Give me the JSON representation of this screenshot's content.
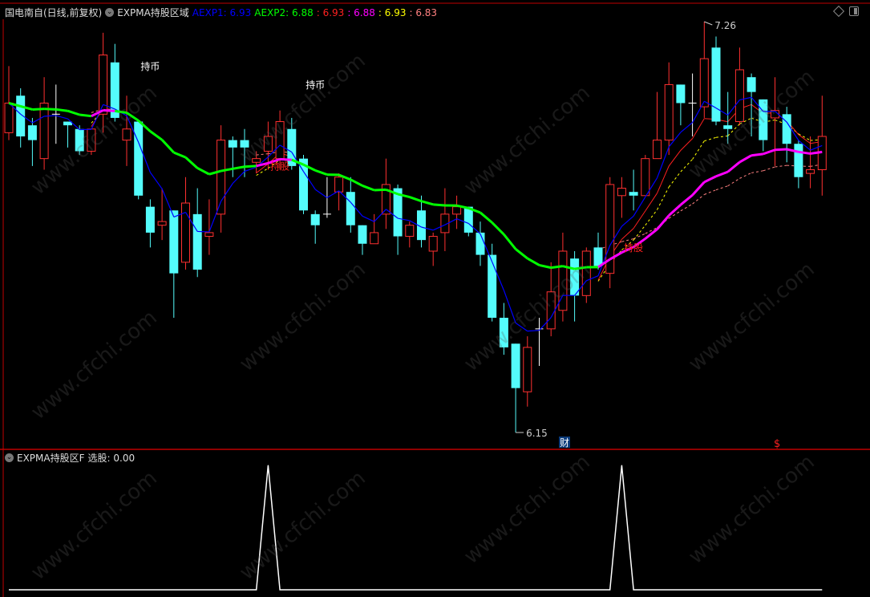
{
  "header": {
    "stock": "国电南自(日线,前复权)",
    "indicator": "EXPMA持股区域",
    "values": [
      {
        "text": "AEXP1: 6.93",
        "color": "#0000ff"
      },
      {
        "text": "AEXP2: 6.88",
        "color": "#00ff00"
      },
      {
        "text": ": 6.93",
        "color": "#ff2020"
      },
      {
        "text": ": 6.88",
        "color": "#ff00ff"
      },
      {
        "text": ": 6.93",
        "color": "#ffff00"
      },
      {
        "text": ": 6.83",
        "color": "#ff8080"
      }
    ]
  },
  "lower_header": {
    "indicator": "EXPMA持股区F",
    "value": "选股: 0.00"
  },
  "annotations": {
    "signals": [
      {
        "text": "持币",
        "index": 12,
        "price": 7.13,
        "color": "#ffffff"
      },
      {
        "text": "持币",
        "index": 26,
        "price": 7.08,
        "color": "#ffffff"
      },
      {
        "text": "持股",
        "index": 23,
        "price": 6.86,
        "color": "#ff2020"
      },
      {
        "text": "持股",
        "index": 53,
        "price": 6.64,
        "color": "#ff2020"
      }
    ],
    "high_label": "7.26",
    "low_label": "6.15",
    "fin_marker": "财",
    "dollar_marker": "$"
  },
  "watermark": "www.cfchi.com",
  "colors": {
    "up": "#ff3030",
    "down": "#54fcfc",
    "doji": "#ffffff",
    "border": "#c00000",
    "aexp1": "#0000ff",
    "aexp2_down": "#00ff00",
    "aexp2_up": "#ff00ff"
  },
  "chart_data": {
    "type": "candlestick",
    "ylim": [
      6.15,
      7.26
    ],
    "candles": [
      [
        6.96,
        7.14,
        6.94,
        7.04
      ],
      [
        7.06,
        7.08,
        6.92,
        6.95
      ],
      [
        6.98,
        7.0,
        6.87,
        6.94
      ],
      [
        6.89,
        7.11,
        6.86,
        7.04
      ],
      [
        7.01,
        7.09,
        6.93,
        7.01
      ],
      [
        6.99,
        6.99,
        6.92,
        6.98
      ],
      [
        6.97,
        6.98,
        6.9,
        6.91
      ],
      [
        6.91,
        6.97,
        6.9,
        6.97
      ],
      [
        7.01,
        7.23,
        6.96,
        7.17
      ],
      [
        7.15,
        7.2,
        6.99,
        7.0
      ],
      [
        6.94,
        7.06,
        6.87,
        6.97
      ],
      [
        6.99,
        6.99,
        6.78,
        6.79
      ],
      [
        6.76,
        6.78,
        6.65,
        6.69
      ],
      [
        6.71,
        6.81,
        6.67,
        6.72
      ],
      [
        6.75,
        6.75,
        6.46,
        6.58
      ],
      [
        6.61,
        6.84,
        6.59,
        6.77
      ],
      [
        6.74,
        6.81,
        6.57,
        6.59
      ],
      [
        6.68,
        6.78,
        6.63,
        6.69
      ],
      [
        6.74,
        6.98,
        6.69,
        6.94
      ],
      [
        6.94,
        6.95,
        6.84,
        6.92
      ],
      [
        6.94,
        6.97,
        6.84,
        6.92
      ],
      [
        6.88,
        6.91,
        6.85,
        6.89
      ],
      [
        6.91,
        6.99,
        6.86,
        6.95
      ],
      [
        6.89,
        7.02,
        6.86,
        6.99
      ],
      [
        6.97,
        7.0,
        6.86,
        6.87
      ],
      [
        6.89,
        6.9,
        6.74,
        6.75
      ],
      [
        6.74,
        6.75,
        6.66,
        6.71
      ],
      [
        6.74,
        6.84,
        6.73,
        6.74
      ],
      [
        6.8,
        6.85,
        6.75,
        6.84
      ],
      [
        6.8,
        6.84,
        6.69,
        6.71
      ],
      [
        6.71,
        6.71,
        6.63,
        6.66
      ],
      [
        6.66,
        6.74,
        6.66,
        6.69
      ],
      [
        6.74,
        6.89,
        6.7,
        6.82
      ],
      [
        6.81,
        6.82,
        6.63,
        6.68
      ],
      [
        6.68,
        6.72,
        6.65,
        6.71
      ],
      [
        6.75,
        6.79,
        6.65,
        6.67
      ],
      [
        6.64,
        6.69,
        6.6,
        6.68
      ],
      [
        6.69,
        6.81,
        6.64,
        6.74
      ],
      [
        6.74,
        6.79,
        6.7,
        6.76
      ],
      [
        6.76,
        6.76,
        6.68,
        6.69
      ],
      [
        6.69,
        6.72,
        6.6,
        6.63
      ],
      [
        6.63,
        6.66,
        6.45,
        6.46
      ],
      [
        6.46,
        6.5,
        6.36,
        6.38
      ],
      [
        6.39,
        6.39,
        6.15,
        6.27
      ],
      [
        6.26,
        6.41,
        6.22,
        6.38
      ],
      [
        6.43,
        6.46,
        6.33,
        6.43
      ],
      [
        6.43,
        6.61,
        6.41,
        6.53
      ],
      [
        6.48,
        6.69,
        6.45,
        6.64
      ],
      [
        6.62,
        6.64,
        6.45,
        6.52
      ],
      [
        6.52,
        6.65,
        6.5,
        6.64
      ],
      [
        6.65,
        6.69,
        6.59,
        6.6
      ],
      [
        6.58,
        6.84,
        6.54,
        6.82
      ],
      [
        6.79,
        6.84,
        6.73,
        6.81
      ],
      [
        6.8,
        6.86,
        6.75,
        6.79
      ],
      [
        6.79,
        6.9,
        6.79,
        6.89
      ],
      [
        6.89,
        7.07,
        6.89,
        6.94
      ],
      [
        6.94,
        7.15,
        6.9,
        7.09
      ],
      [
        7.09,
        7.09,
        6.98,
        7.04
      ],
      [
        7.04,
        7.12,
        6.95,
        7.04
      ],
      [
        7.03,
        7.26,
        7.0,
        7.16
      ],
      [
        7.19,
        7.22,
        6.98,
        6.99
      ],
      [
        6.98,
        7.07,
        6.93,
        6.97
      ],
      [
        6.99,
        7.19,
        6.98,
        7.13
      ],
      [
        7.11,
        7.12,
        6.95,
        7.07
      ],
      [
        7.05,
        7.05,
        6.91,
        6.94
      ],
      [
        7.0,
        7.11,
        6.87,
        7.02
      ],
      [
        7.01,
        7.03,
        6.88,
        6.93
      ],
      [
        6.93,
        6.94,
        6.81,
        6.84
      ],
      [
        6.85,
        6.95,
        6.81,
        6.86
      ],
      [
        6.86,
        7.06,
        6.79,
        6.95
      ]
    ],
    "lower_panel": {
      "name": "选股",
      "ylim": [
        0,
        1
      ],
      "spikes_at_index": [
        22,
        52
      ],
      "last_value": 0.0
    }
  }
}
